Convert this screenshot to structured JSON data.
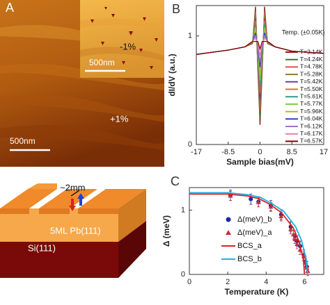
{
  "panel_a": {
    "label": "A",
    "inset_strain": "-1%",
    "inset_scale": "500nm",
    "strain": "+1%",
    "scale": "500nm"
  },
  "schematic": {
    "gap": "~2mm",
    "film": "5ML Pb(111)",
    "substrate": "Si(111)"
  },
  "chart_data": [
    {
      "type": "line",
      "panel": "B",
      "ylabel": "dI/dV (a.u.)",
      "xlabel": "Sample bias(mV)",
      "legend_title": "Temp. (±0.05K)",
      "x": [
        -17,
        -8.5,
        -4,
        -2,
        -1.2,
        -0.6,
        0,
        0.6,
        1.2,
        2,
        4,
        8.5,
        17
      ],
      "xlim": [
        -17,
        17
      ],
      "xticks": [
        -17,
        -8.5,
        0,
        8.5,
        17
      ],
      "ylim": [
        0,
        1.28
      ],
      "yticks": [
        0,
        1
      ],
      "series": [
        {
          "name": "T=2.14K",
          "color": "#8b1a1a",
          "values": [
            0.83,
            0.87,
            0.9,
            0.93,
            1.27,
            0.7,
            0.18,
            0.7,
            1.27,
            0.93,
            0.9,
            0.86,
            0.84
          ]
        },
        {
          "name": "T=4.24K",
          "color": "#2e7d32",
          "values": [
            0.83,
            0.87,
            0.9,
            0.93,
            1.24,
            0.72,
            0.24,
            0.72,
            1.24,
            0.93,
            0.9,
            0.86,
            0.84
          ]
        },
        {
          "name": "T=4.78K",
          "color": "#e05050",
          "values": [
            0.83,
            0.87,
            0.9,
            0.94,
            1.22,
            0.74,
            0.3,
            0.74,
            1.22,
            0.94,
            0.9,
            0.86,
            0.84
          ]
        },
        {
          "name": "T=5.28K",
          "color": "#8a7a2a",
          "values": [
            0.83,
            0.87,
            0.9,
            0.94,
            1.19,
            0.76,
            0.35,
            0.76,
            1.19,
            0.94,
            0.9,
            0.86,
            0.84
          ]
        },
        {
          "name": "T=5.42K",
          "color": "#6a3d9a",
          "values": [
            0.83,
            0.87,
            0.9,
            0.94,
            1.16,
            0.78,
            0.41,
            0.78,
            1.16,
            0.94,
            0.9,
            0.86,
            0.84
          ]
        },
        {
          "name": "T=5.50K",
          "color": "#e07020",
          "values": [
            0.83,
            0.87,
            0.9,
            0.94,
            1.14,
            0.8,
            0.47,
            0.8,
            1.14,
            0.94,
            0.9,
            0.86,
            0.84
          ]
        },
        {
          "name": "T=5.61K",
          "color": "#2a9d8f",
          "values": [
            0.83,
            0.87,
            0.9,
            0.95,
            1.11,
            0.82,
            0.53,
            0.82,
            1.11,
            0.95,
            0.9,
            0.86,
            0.84
          ]
        },
        {
          "name": "T=5.77K",
          "color": "#7ccc3c",
          "values": [
            0.83,
            0.87,
            0.9,
            0.95,
            1.08,
            0.85,
            0.59,
            0.85,
            1.08,
            0.95,
            0.9,
            0.86,
            0.84
          ]
        },
        {
          "name": "T=5.96K",
          "color": "#c0b020",
          "values": [
            0.83,
            0.87,
            0.9,
            0.95,
            1.06,
            0.87,
            0.65,
            0.87,
            1.06,
            0.95,
            0.9,
            0.86,
            0.84
          ]
        },
        {
          "name": "T=6.04K",
          "color": "#3040c0",
          "values": [
            0.83,
            0.87,
            0.9,
            0.95,
            1.03,
            0.89,
            0.71,
            0.89,
            1.03,
            0.95,
            0.9,
            0.86,
            0.84
          ]
        },
        {
          "name": "T=6.12K",
          "color": "#a070d0",
          "values": [
            0.83,
            0.87,
            0.9,
            0.95,
            1.0,
            0.91,
            0.76,
            0.91,
            1.0,
            0.95,
            0.9,
            0.86,
            0.84
          ]
        },
        {
          "name": "T=6.17K",
          "color": "#e080a0",
          "values": [
            0.83,
            0.87,
            0.9,
            0.95,
            0.98,
            0.93,
            0.82,
            0.93,
            0.98,
            0.95,
            0.9,
            0.86,
            0.84
          ]
        },
        {
          "name": "T=6.57K",
          "color": "#800000",
          "values": [
            0.83,
            0.87,
            0.9,
            0.95,
            0.95,
            0.95,
            0.88,
            0.95,
            0.95,
            0.95,
            0.9,
            0.86,
            0.84
          ]
        }
      ]
    },
    {
      "type": "scatter",
      "panel": "C",
      "ylabel": "Δ (meV)",
      "xlabel": "Temperature (K)",
      "xlim": [
        0,
        7
      ],
      "xticks": [
        0,
        2,
        4,
        6
      ],
      "ylim": [
        0,
        1.35
      ],
      "yticks": [
        0,
        1
      ],
      "series": [
        {
          "name": "Δ(meV)_b",
          "color": "#1a2a9a",
          "marker": "circle",
          "x": [
            2.14,
            3.2,
            3.6,
            4.24,
            4.78,
            5.28,
            5.5,
            5.61,
            5.77,
            5.96,
            6.04,
            6.12
          ],
          "values": [
            1.23,
            1.17,
            1.13,
            1.07,
            0.93,
            0.74,
            0.6,
            0.52,
            0.44,
            0.3,
            0.2,
            0.12
          ],
          "errors": [
            0.08,
            0.08,
            0.08,
            0.08,
            0.08,
            0.08,
            0.08,
            0.08,
            0.08,
            0.08,
            0.08,
            0.08
          ]
        },
        {
          "name": "Δ(meV)_a",
          "color": "#c0303a",
          "marker": "triangle",
          "x": [
            2.14,
            3.6,
            4.24,
            4.78,
            5.28,
            5.42,
            5.5,
            5.61,
            5.77,
            5.96,
            6.04,
            6.12,
            6.17
          ],
          "values": [
            1.22,
            1.12,
            1.05,
            0.9,
            0.7,
            0.62,
            0.55,
            0.47,
            0.38,
            0.28,
            0.18,
            0.1,
            0.05
          ],
          "errors": [
            0.07,
            0.07,
            0.07,
            0.07,
            0.07,
            0.07,
            0.07,
            0.07,
            0.07,
            0.07,
            0.07,
            0.07,
            0.07
          ]
        },
        {
          "name": "BCS_a",
          "color": "#e02020",
          "marker": "line",
          "x": [
            0,
            2,
            3,
            3.6,
            4.2,
            4.8,
            5.4,
            5.7,
            5.94,
            6.0
          ],
          "values": [
            1.25,
            1.25,
            1.22,
            1.18,
            1.09,
            0.96,
            0.73,
            0.52,
            0.23,
            0
          ]
        },
        {
          "name": "BCS_b",
          "color": "#20b0e0",
          "marker": "line",
          "x": [
            0,
            2,
            3,
            3.69,
            4.3,
            4.92,
            5.54,
            5.84,
            6.09,
            6.15
          ],
          "values": [
            1.27,
            1.27,
            1.24,
            1.2,
            1.1,
            0.98,
            0.74,
            0.53,
            0.23,
            0
          ]
        }
      ]
    }
  ]
}
